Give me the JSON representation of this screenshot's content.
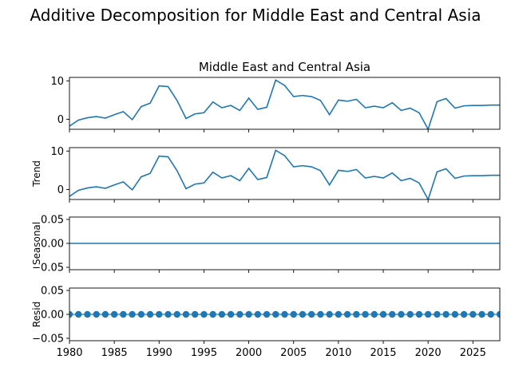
{
  "suptitle": "Additive Decomposition for Middle East and Central Asia",
  "colors": {
    "line": "#1f77b4",
    "axis": "#000000"
  },
  "chart_data": {
    "type": "line",
    "x": [
      1980,
      1981,
      1982,
      1983,
      1984,
      1985,
      1986,
      1987,
      1988,
      1989,
      1990,
      1991,
      1992,
      1993,
      1994,
      1995,
      1996,
      1997,
      1998,
      1999,
      2000,
      2001,
      2002,
      2003,
      2004,
      2005,
      2006,
      2007,
      2008,
      2009,
      2010,
      2011,
      2012,
      2013,
      2014,
      2015,
      2016,
      2017,
      2018,
      2019,
      2020,
      2021,
      2022,
      2023,
      2024,
      2025,
      2026,
      2027,
      2028
    ],
    "xlim": [
      1980,
      2028
    ],
    "xticks": [
      1980,
      1985,
      1990,
      1995,
      2000,
      2005,
      2010,
      2015,
      2020,
      2025
    ],
    "grid": false,
    "panels": [
      {
        "name": "observed",
        "title": "Middle East and Central Asia",
        "ylabel": "",
        "style": "line",
        "ylim": [
          -2.6,
          10.9
        ],
        "yticks": [
          0,
          10
        ],
        "ytick_labels": [
          "0",
          "10"
        ],
        "values": [
          -1.8,
          -0.2,
          0.4,
          0.7,
          0.3,
          1.2,
          2.0,
          -0.1,
          3.3,
          4.2,
          8.7,
          8.5,
          4.9,
          0.2,
          1.4,
          1.7,
          4.5,
          3.0,
          3.6,
          2.3,
          5.5,
          2.6,
          3.1,
          10.2,
          8.8,
          5.9,
          6.2,
          5.9,
          4.9,
          1.2,
          5.0,
          4.7,
          5.2,
          3.0,
          3.4,
          3.0,
          4.3,
          2.3,
          2.9,
          1.7,
          -2.6,
          4.6,
          5.4,
          2.9,
          3.5,
          3.6,
          3.6,
          3.7,
          3.7
        ]
      },
      {
        "name": "trend",
        "title": "",
        "ylabel": "Trend",
        "style": "line",
        "ylim": [
          -2.6,
          10.9
        ],
        "yticks": [
          0,
          10
        ],
        "ytick_labels": [
          "0",
          "10"
        ],
        "values": [
          -1.8,
          -0.2,
          0.4,
          0.7,
          0.3,
          1.2,
          2.0,
          -0.1,
          3.3,
          4.2,
          8.7,
          8.5,
          4.9,
          0.2,
          1.4,
          1.7,
          4.5,
          3.0,
          3.6,
          2.3,
          5.5,
          2.6,
          3.1,
          10.2,
          8.8,
          5.9,
          6.2,
          5.9,
          4.9,
          1.2,
          5.0,
          4.7,
          5.2,
          3.0,
          3.4,
          3.0,
          4.3,
          2.3,
          2.9,
          1.7,
          -2.6,
          4.6,
          5.4,
          2.9,
          3.5,
          3.6,
          3.6,
          3.7,
          3.7
        ]
      },
      {
        "name": "seasonal",
        "title": "",
        "ylabel": "Seasonal",
        "style": "line",
        "ylim": [
          -0.055,
          0.055
        ],
        "yticks": [
          -0.05,
          0.0,
          0.05
        ],
        "ytick_labels": [
          "−0.05",
          "0.00",
          "0.05"
        ],
        "values": [
          0,
          0,
          0,
          0,
          0,
          0,
          0,
          0,
          0,
          0,
          0,
          0,
          0,
          0,
          0,
          0,
          0,
          0,
          0,
          0,
          0,
          0,
          0,
          0,
          0,
          0,
          0,
          0,
          0,
          0,
          0,
          0,
          0,
          0,
          0,
          0,
          0,
          0,
          0,
          0,
          0,
          0,
          0,
          0,
          0,
          0,
          0,
          0,
          0
        ]
      },
      {
        "name": "resid",
        "title": "",
        "ylabel": "Resid",
        "style": "markers",
        "ylim": [
          -0.055,
          0.055
        ],
        "yticks": [
          -0.05,
          0.0,
          0.05
        ],
        "ytick_labels": [
          "−0.05",
          "0.00",
          "0.05"
        ],
        "values": [
          0,
          0,
          0,
          0,
          0,
          0,
          0,
          0,
          0,
          0,
          0,
          0,
          0,
          0,
          0,
          0,
          0,
          0,
          0,
          0,
          0,
          0,
          0,
          0,
          0,
          0,
          0,
          0,
          0,
          0,
          0,
          0,
          0,
          0,
          0,
          0,
          0,
          0,
          0,
          0,
          0,
          0,
          0,
          0,
          0,
          0,
          0,
          0,
          0
        ]
      }
    ]
  }
}
